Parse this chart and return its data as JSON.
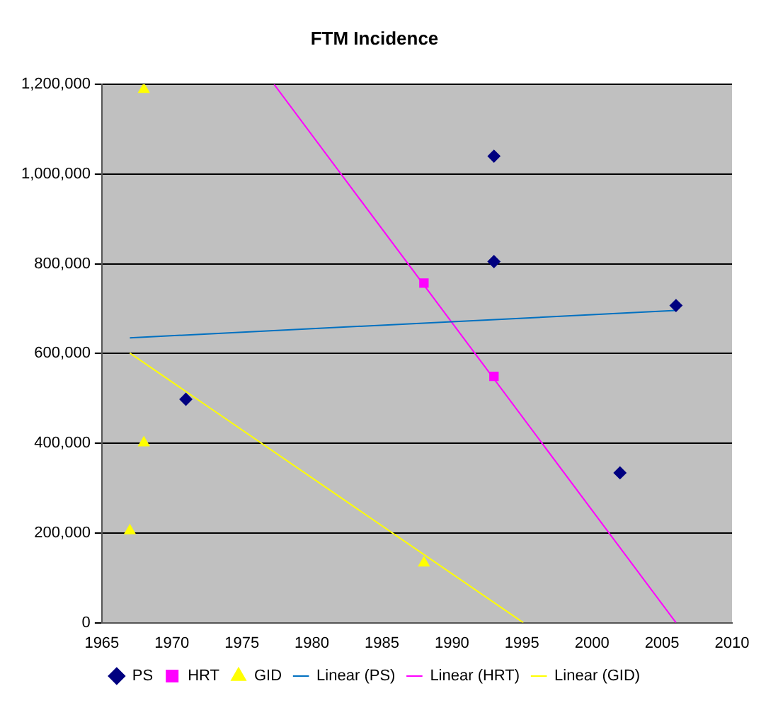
{
  "chart_data": {
    "type": "scatter",
    "title": "FTM Incidence",
    "series": [
      {
        "name": "PS",
        "marker": "diamond",
        "color": "#000080",
        "x": [
          1971,
          1993,
          1993,
          2002,
          2006
        ],
        "values": [
          498000,
          1040000,
          805000,
          334000,
          707000
        ]
      },
      {
        "name": "HRT",
        "marker": "square",
        "color": "#ff00ff",
        "x": [
          1988,
          1993
        ],
        "values": [
          757000,
          549000
        ]
      },
      {
        "name": "GID",
        "marker": "triangle",
        "color": "#ffff00",
        "x": [
          1968,
          1968,
          1967,
          1988
        ],
        "values": [
          1189000,
          401000,
          205000,
          133000
        ]
      },
      {
        "name": "Linear (PS)",
        "type": "line",
        "marker": "none",
        "color": "#0070c0",
        "x": [
          1967,
          2006
        ],
        "values": [
          635000,
          696000
        ]
      },
      {
        "name": "Linear (HRT)",
        "type": "line",
        "marker": "none",
        "color": "#ff00ff",
        "x": [
          1977.3,
          2006
        ],
        "values": [
          1200000,
          0
        ]
      },
      {
        "name": "Linear (GID)",
        "type": "line",
        "marker": "none",
        "color": "#ffff00",
        "x": [
          1967,
          1995.1
        ],
        "values": [
          601000,
          0
        ]
      }
    ],
    "xlim": [
      1965,
      2010
    ],
    "xticks": [
      1965,
      1970,
      1975,
      1980,
      1985,
      1990,
      1995,
      2000,
      2005,
      2010
    ],
    "ylim": [
      0,
      1200000
    ],
    "yticks": [
      0,
      {
        "value": 200000,
        "label": "200,000"
      },
      {
        "value": 400000,
        "label": "400,000"
      },
      {
        "value": 600000,
        "label": "600,000"
      },
      {
        "value": 800000,
        "label": "800,000"
      },
      {
        "value": 1000000,
        "label": "1,000,000"
      },
      {
        "value": 1200000,
        "label": "1,200,000"
      }
    ],
    "grid": "y",
    "legend": "bottom"
  }
}
